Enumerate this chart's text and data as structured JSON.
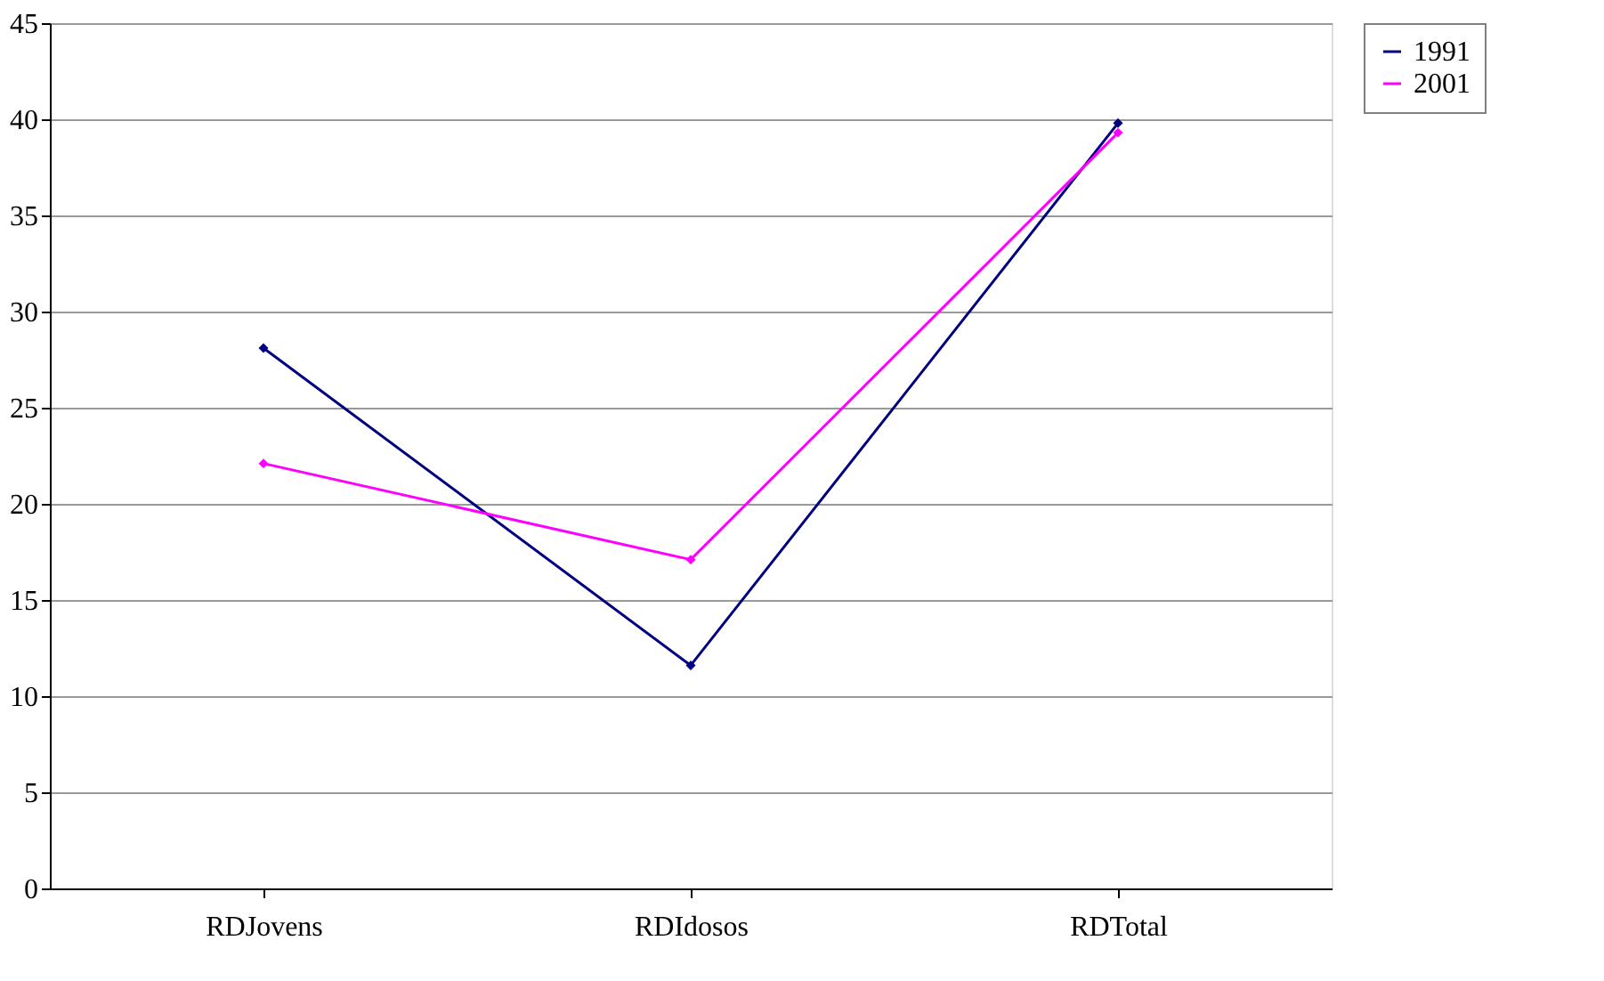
{
  "chart_data": {
    "type": "line",
    "categories": [
      "RDJovens",
      "RDIdosos",
      "RDTotal"
    ],
    "series": [
      {
        "name": "1991",
        "color": "#000080",
        "values": [
          28.1,
          11.6,
          39.8
        ]
      },
      {
        "name": "2001",
        "color": "#ff00ff",
        "values": [
          22.1,
          17.1,
          39.3
        ]
      }
    ],
    "ylim": [
      0,
      45
    ],
    "yticks": [
      0,
      5,
      10,
      15,
      20,
      25,
      30,
      35,
      40,
      45
    ],
    "grid": "y",
    "legend": "right",
    "marker": "diamond"
  }
}
